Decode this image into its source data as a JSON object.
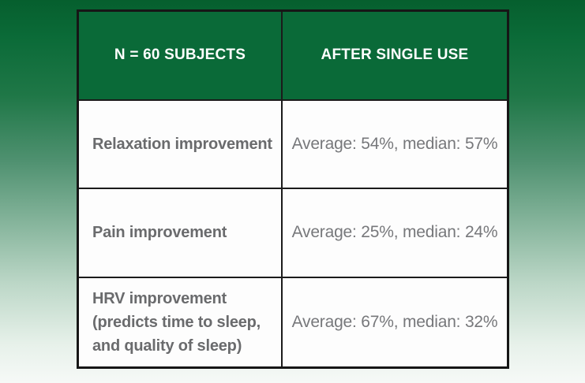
{
  "table": {
    "header": {
      "col1": "N = 60 SUBJECTS",
      "col2": "AFTER SINGLE USE"
    },
    "rows": [
      {
        "metric": "Relaxation improvement",
        "result": "Average: 54%, median: 57%"
      },
      {
        "metric": "Pain improvement",
        "result": "Average: 25%, median: 24%"
      },
      {
        "metric": "HRV improvement\n(predicts time to sleep,\nand quality of sleep)",
        "result": "Average: 67%, median: 32%"
      }
    ]
  },
  "colors": {
    "header_green": "#0a6a38",
    "background_top_green": "#065f2e",
    "background_bottom": "#f6f9f7",
    "table_border": "#161616",
    "cell_background": "#fdfdfd",
    "metric_text_gray": "#6a6b6d",
    "value_text_gray": "#77787b",
    "header_text": "#ffffff"
  },
  "chart_data": {
    "type": "table",
    "title": "",
    "columns": [
      "N = 60 SUBJECTS",
      "AFTER SINGLE USE"
    ],
    "rows": [
      [
        "Relaxation improvement",
        "Average: 54%, median: 57%"
      ],
      [
        "Pain improvement",
        "Average: 25%, median: 24%"
      ],
      [
        "HRV improvement (predicts time to sleep, and quality of sleep)",
        "Average: 67%, median: 32%"
      ]
    ],
    "categories": [
      "Relaxation improvement",
      "Pain improvement",
      "HRV improvement (predicts time to sleep, and quality of sleep)"
    ],
    "series": [
      {
        "name": "Average (%)",
        "values": [
          54,
          25,
          67
        ]
      },
      {
        "name": "Median (%)",
        "values": [
          57,
          24,
          32
        ]
      }
    ],
    "sample_size_label": "N = 60 SUBJECTS",
    "condition_label": "AFTER SINGLE USE"
  }
}
